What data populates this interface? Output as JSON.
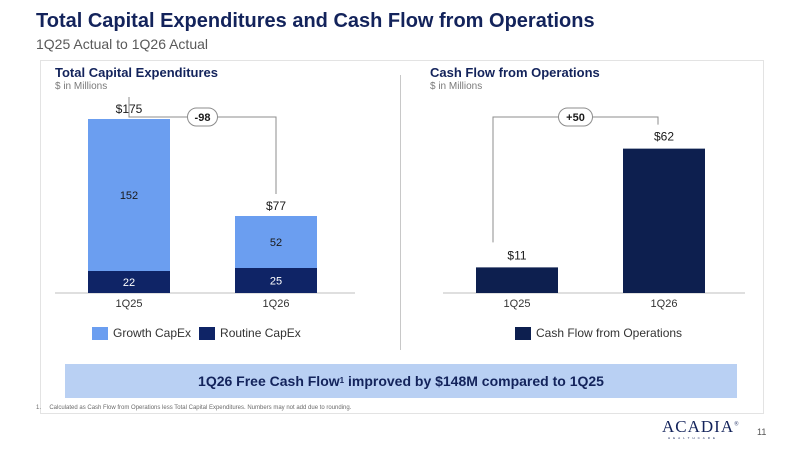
{
  "header": {
    "title": "Total Capital Expenditures and Cash Flow from Operations",
    "subtitle": "1Q25 Actual to 1Q26 Actual"
  },
  "colors": {
    "growth": "#6b9ef0",
    "routine": "#0f2466",
    "cfo": "#0d1f4f",
    "banner": "#b9d0f3",
    "title": "#13235b"
  },
  "chart_data": [
    {
      "type": "bar",
      "stacked": true,
      "title": "Total Capital Expenditures",
      "subtitle": "$ in Millions",
      "categories": [
        "1Q25",
        "1Q26"
      ],
      "series": [
        {
          "name": "Routine CapEx",
          "values": [
            22,
            25
          ],
          "labels": [
            "22",
            "25"
          ],
          "color": "#0f2466"
        },
        {
          "name": "Growth CapEx",
          "values": [
            152,
            52
          ],
          "labels": [
            "152",
            "52"
          ],
          "color": "#6b9ef0"
        }
      ],
      "totals": [
        175,
        77
      ],
      "total_labels": [
        "$175",
        "$77"
      ],
      "change_label": "-98",
      "ylim": [
        0,
        200
      ],
      "legend_position": "bottom",
      "legend": [
        {
          "name": "Growth CapEx",
          "color": "#6b9ef0"
        },
        {
          "name": "Routine CapEx",
          "color": "#0f2466"
        }
      ]
    },
    {
      "type": "bar",
      "stacked": false,
      "title": "Cash Flow from Operations",
      "subtitle": "$ in Millions",
      "categories": [
        "1Q25",
        "1Q26"
      ],
      "series": [
        {
          "name": "Cash Flow from Operations",
          "values": [
            11,
            62
          ],
          "color": "#0d1f4f"
        }
      ],
      "value_labels": [
        "$11",
        "$62"
      ],
      "change_label": "+50",
      "ylim": [
        0,
        70
      ],
      "legend_position": "bottom",
      "legend": [
        {
          "name": "Cash Flow from Operations",
          "color": "#0d1f4f"
        }
      ]
    }
  ],
  "banner": {
    "text_before": "1Q26 Free Cash Flow",
    "footnote_mark": "1",
    "text_after": " improved by $148M compared to 1Q25"
  },
  "footnote": "1.     Calculated as Cash Flow from Operations less Total Capital Expenditures. Numbers may not add due to rounding.",
  "logo": {
    "text": "ACADIA",
    "reg": "®",
    "sub": "HEALTHCARE"
  },
  "page_number": "11"
}
